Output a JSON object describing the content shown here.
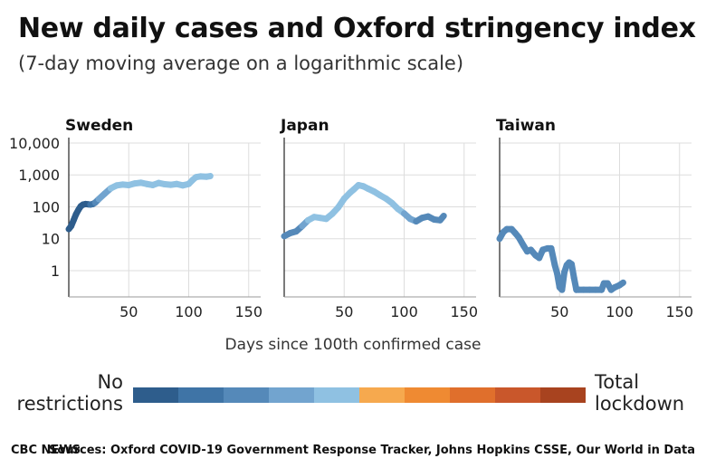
{
  "title": "New daily cases and Oxford stringency index",
  "subtitle": "(7-day moving average on a logarithmic scale)",
  "xlabel": "Days since 100th confirmed case",
  "legend": {
    "left_label_1": "No",
    "left_label_2": "restrictions",
    "right_label_1": "Total",
    "right_label_2": "lockdown",
    "colors": [
      "#2e5d8c",
      "#3f74a6",
      "#5589b9",
      "#72a4cf",
      "#8fc1e2",
      "#f6a94e",
      "#ef8a32",
      "#e06f2c",
      "#c9572b",
      "#a8431f"
    ]
  },
  "footer": {
    "brand": "CBC NEWS",
    "sources": "Sources: Oxford COVID-19 Government Response Tracker, Johns Hopkins CSSE, Our World in Data"
  },
  "chart_data": [
    {
      "type": "line",
      "title": "Sweden",
      "y_scale": "log",
      "ylim": [
        0.15,
        10000
      ],
      "yticks": [
        1,
        10,
        100,
        1000,
        10000
      ],
      "ytick_labels": [
        "1",
        "10",
        "100",
        "1,000",
        "10,000"
      ],
      "xlim": [
        0,
        160
      ],
      "xticks": [
        50,
        100,
        150
      ],
      "xtick_labels": [
        "50",
        "100",
        "150"
      ],
      "grid": true,
      "series": [
        {
          "x": [
            0,
            2,
            4,
            6,
            8,
            10,
            12,
            14,
            16,
            18,
            20,
            22,
            25,
            30,
            35,
            40,
            45,
            50,
            55,
            60,
            65,
            70,
            75,
            80,
            85,
            90,
            95,
            100,
            103,
            106,
            110,
            115,
            118
          ],
          "y": [
            20,
            25,
            38,
            58,
            80,
            105,
            118,
            122,
            120,
            118,
            122,
            135,
            175,
            260,
            380,
            470,
            500,
            480,
            540,
            570,
            520,
            480,
            560,
            510,
            490,
            520,
            470,
            520,
            680,
            850,
            900,
            880,
            920
          ],
          "stringency": [
            0,
            0,
            0,
            0,
            0,
            0,
            0,
            0,
            0,
            1,
            1,
            2,
            3,
            3,
            4,
            4,
            4,
            4,
            4,
            4,
            4,
            4,
            4,
            4,
            4,
            4,
            4,
            4,
            4,
            4,
            4,
            4,
            4
          ]
        }
      ]
    },
    {
      "type": "line",
      "title": "Japan",
      "y_scale": "log",
      "ylim": [
        0.15,
        10000
      ],
      "yticks": [
        1,
        10,
        100,
        1000,
        10000
      ],
      "ytick_labels": [
        "",
        "",
        "",
        "",
        ""
      ],
      "xlim": [
        0,
        160
      ],
      "xticks": [
        50,
        100,
        150
      ],
      "xtick_labels": [
        "50",
        "100",
        "150"
      ],
      "grid": true,
      "series": [
        {
          "x": [
            0,
            5,
            10,
            15,
            20,
            25,
            30,
            35,
            40,
            45,
            50,
            55,
            58,
            62,
            66,
            70,
            75,
            80,
            85,
            90,
            95,
            100,
            105,
            110,
            115,
            120,
            125,
            130,
            133
          ],
          "y": [
            12,
            15,
            17,
            25,
            38,
            48,
            45,
            42,
            60,
            95,
            180,
            280,
            350,
            480,
            440,
            370,
            300,
            230,
            180,
            130,
            85,
            62,
            42,
            35,
            45,
            50,
            40,
            38,
            52
          ],
          "stringency": [
            2,
            2,
            2,
            3,
            4,
            4,
            4,
            4,
            4,
            4,
            4,
            4,
            4,
            4,
            4,
            4,
            4,
            4,
            4,
            4,
            4,
            3,
            3,
            2,
            2,
            2,
            2,
            2,
            2
          ]
        }
      ]
    },
    {
      "type": "line",
      "title": "Taiwan",
      "y_scale": "log",
      "ylim": [
        0.15,
        10000
      ],
      "yticks": [
        1,
        10,
        100,
        1000,
        10000
      ],
      "ytick_labels": [
        "",
        "",
        "",
        "",
        ""
      ],
      "xlim": [
        0,
        160
      ],
      "xticks": [
        50,
        100,
        150
      ],
      "xtick_labels": [
        "50",
        "100",
        "150"
      ],
      "grid": true,
      "series": [
        {
          "x": [
            0,
            3,
            6,
            10,
            13,
            16,
            20,
            23,
            26,
            30,
            33,
            36,
            40,
            43,
            46,
            48,
            50,
            52,
            54,
            56,
            58,
            60,
            62,
            64,
            66,
            70,
            75,
            80,
            85,
            87,
            90,
            93,
            96,
            100,
            103
          ],
          "y": [
            10,
            16,
            20,
            20,
            15,
            11,
            6,
            4,
            4.5,
            3,
            2.5,
            4.5,
            5,
            5,
            1.5,
            0.8,
            0.3,
            0.25,
            0.9,
            1.5,
            1.8,
            1.6,
            0.6,
            0.25,
            0.25,
            0.25,
            0.25,
            0.25,
            0.25,
            0.4,
            0.4,
            0.25,
            0.3,
            0.35,
            0.42
          ],
          "stringency": [
            2,
            2,
            2,
            2,
            2,
            2,
            2,
            2,
            2,
            2,
            2,
            2,
            2,
            2,
            2,
            2,
            2,
            2,
            2,
            2,
            2,
            2,
            2,
            2,
            2,
            2,
            2,
            2,
            2,
            2,
            2,
            2,
            2,
            2,
            2
          ]
        }
      ]
    }
  ]
}
